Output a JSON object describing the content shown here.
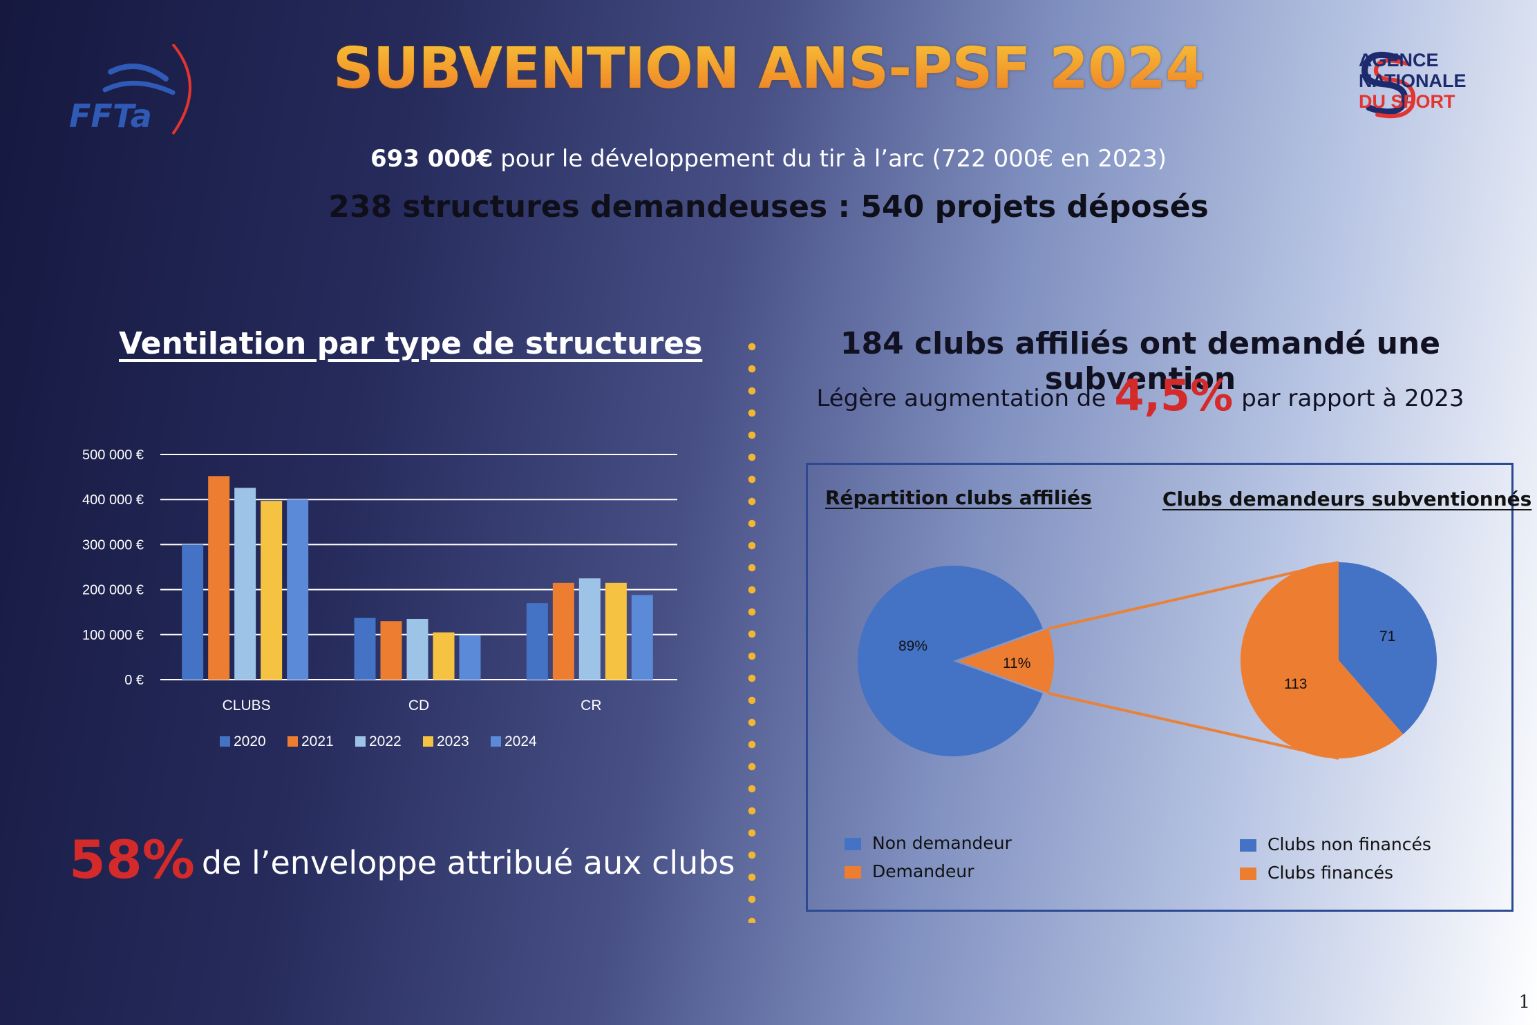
{
  "title": "SUBVENTION ANS-PSF 2024",
  "subtitle_bold": "693 000€",
  "subtitle_rest": " pour le développement du tir à l’arc (722 000€ en 2023)",
  "subtitle2": "238 structures demandeuses : 540 projets déposés",
  "logos": {
    "ffta": "FFTa",
    "ans_line1": "AGENCE",
    "ans_line2": "NATIONALE",
    "ans_line3": "DU SPORT"
  },
  "colors": {
    "accent_red": "#d42a2a",
    "gold": "#f3b630",
    "navy": "#15183f"
  },
  "left_heading": "Ventilation par type de structures",
  "right_heading": "184 clubs affiliés ont demandé une subvention",
  "right_sub_pre": "Légère augmentation de",
  "right_sub_big": "4,5%",
  "right_sub_post": "par rapport à 2023",
  "bottom_stat_big": "58%",
  "bottom_stat_rest": "de l’enveloppe attribué aux clubs",
  "page_number": "1",
  "chart_data": [
    {
      "type": "bar",
      "categories": [
        "CLUBS",
        "CD",
        "CR"
      ],
      "series": [
        {
          "name": "2020",
          "values": [
            300000,
            137000,
            170000
          ],
          "color": "#4472c4"
        },
        {
          "name": "2021",
          "values": [
            452000,
            130000,
            215000
          ],
          "color": "#ed7d31"
        },
        {
          "name": "2022",
          "values": [
            426000,
            135000,
            225000
          ],
          "color": "#9dc3e6"
        },
        {
          "name": "2023",
          "values": [
            397000,
            105000,
            215000
          ],
          "color": "#f5c242"
        },
        {
          "name": "2024",
          "values": [
            400000,
            98000,
            188000
          ],
          "color": "#5b8ad8"
        }
      ],
      "ylim": [
        0,
        500000
      ],
      "yticks": [
        {
          "value": 500000,
          "label": "500 000 €"
        },
        {
          "value": 400000,
          "label": "400 000 €"
        },
        {
          "value": 300000,
          "label": "300 000 €"
        },
        {
          "value": 200000,
          "label": "200 000 €"
        },
        {
          "value": 100000,
          "label": "100 000 €"
        },
        {
          "value": 0,
          "label": "0 €"
        }
      ],
      "grid": true,
      "legend_position": "bottom"
    },
    {
      "type": "pie",
      "title": "Répartition clubs affiliés",
      "slices": [
        {
          "name": "Non demandeur",
          "value": 89,
          "label": "89%",
          "color": "#4472c4"
        },
        {
          "name": "Demandeur",
          "value": 11,
          "label": "11%",
          "color": "#ed7d31"
        }
      ],
      "legend_position": "bottom-left"
    },
    {
      "type": "pie",
      "title": "Clubs demandeurs subventionnés",
      "slices": [
        {
          "name": "Clubs non financés",
          "value": 71,
          "label": "71",
          "color": "#4472c4"
        },
        {
          "name": "Clubs financés",
          "value": 113,
          "label": "113",
          "color": "#ed7d31"
        }
      ],
      "legend_position": "bottom-right"
    }
  ]
}
